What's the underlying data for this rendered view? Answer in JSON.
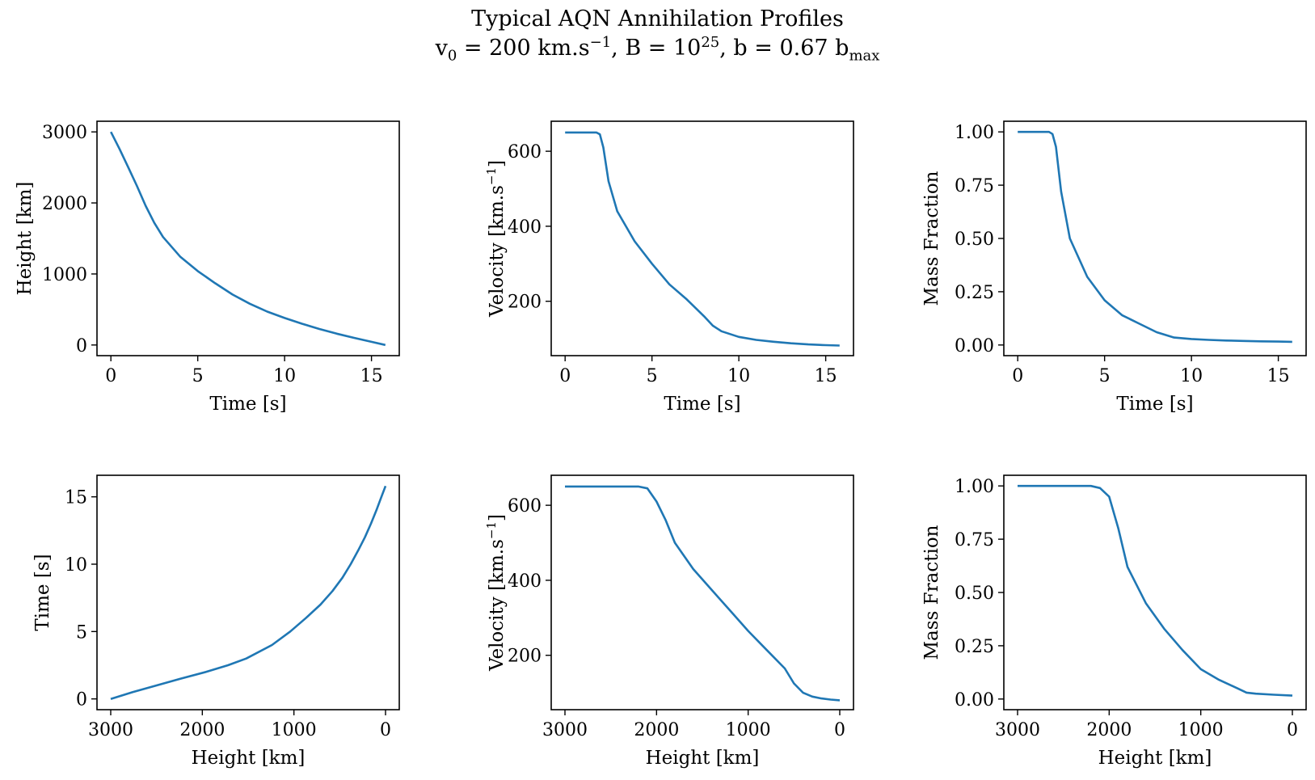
{
  "figure": {
    "title_line1": "Typical AQN Annihilation Profiles",
    "title_line2_parts": {
      "v0_label": "v",
      "v0_sub": "0",
      "v0_value": " = 200 km.s",
      "v0_exp": "−1",
      "B_label": ",  B = 10",
      "B_exp": "25",
      "b_label": ",  b = 0.67 b",
      "b_sub": "max"
    },
    "line_color": "#1f77b4"
  },
  "chart_data": [
    {
      "type": "line",
      "id": "time-height",
      "xlabel": "Time [s]",
      "ylabel": "Height [km]",
      "xlim": [
        -0.8,
        16.6
      ],
      "ylim": [
        -150,
        3150
      ],
      "xticks": [
        0,
        5,
        10,
        15
      ],
      "xtick_labels": [
        "0",
        "5",
        "10",
        "15"
      ],
      "yticks": [
        0,
        1000,
        2000,
        3000
      ],
      "ytick_labels": [
        "0",
        "1000",
        "2000",
        "3000"
      ],
      "x": [
        0,
        0.5,
        1,
        1.5,
        2,
        2.5,
        3,
        4,
        5,
        6,
        7,
        8,
        9,
        10,
        11,
        12,
        13,
        14,
        15,
        15.8
      ],
      "y": [
        3000,
        2760,
        2500,
        2240,
        1960,
        1720,
        1520,
        1240,
        1040,
        870,
        710,
        580,
        470,
        380,
        300,
        225,
        160,
        100,
        45,
        0
      ]
    },
    {
      "type": "line",
      "id": "time-velocity",
      "xlabel": "Time [s]",
      "ylabel": "Velocity [km.s",
      "ylabel_exp": "−1",
      "ylabel_end": "]",
      "xlim": [
        -0.8,
        16.6
      ],
      "ylim": [
        55,
        680
      ],
      "xticks": [
        0,
        5,
        10,
        15
      ],
      "xtick_labels": [
        "0",
        "5",
        "10",
        "15"
      ],
      "yticks": [
        200,
        400,
        600
      ],
      "ytick_labels": [
        "200",
        "400",
        "600"
      ],
      "x": [
        0,
        1.8,
        2.0,
        2.2,
        2.5,
        3,
        4,
        5,
        6,
        7,
        8,
        8.5,
        9,
        10,
        11,
        12,
        13,
        14,
        15,
        15.8
      ],
      "y": [
        650,
        650,
        645,
        610,
        520,
        440,
        360,
        300,
        245,
        205,
        160,
        135,
        120,
        105,
        97,
        92,
        88,
        85,
        83,
        82
      ]
    },
    {
      "type": "line",
      "id": "time-mass",
      "xlabel": "Time [s]",
      "ylabel": "Mass Fraction",
      "xlim": [
        -0.8,
        16.6
      ],
      "ylim": [
        -0.05,
        1.05
      ],
      "xticks": [
        0,
        5,
        10,
        15
      ],
      "xtick_labels": [
        "0",
        "5",
        "10",
        "15"
      ],
      "yticks": [
        0,
        0.25,
        0.5,
        0.75,
        1.0
      ],
      "ytick_labels": [
        "0.00",
        "0.25",
        "0.50",
        "0.75",
        "1.00"
      ],
      "x": [
        0,
        1.8,
        2.0,
        2.2,
        2.5,
        3,
        4,
        5,
        6,
        7,
        8,
        9,
        10,
        11,
        12,
        13,
        14,
        15,
        15.8
      ],
      "y": [
        1.0,
        1.0,
        0.99,
        0.93,
        0.72,
        0.5,
        0.32,
        0.21,
        0.14,
        0.1,
        0.06,
        0.035,
        0.028,
        0.024,
        0.021,
        0.019,
        0.017,
        0.016,
        0.015
      ]
    },
    {
      "type": "line",
      "id": "height-time",
      "xlabel": "Height [km]",
      "ylabel": "Time [s]",
      "xlim": [
        3150,
        -150
      ],
      "ylim": [
        -0.8,
        16.6
      ],
      "xticks": [
        3000,
        2000,
        1000,
        0
      ],
      "xtick_labels": [
        "3000",
        "2000",
        "1000",
        "0"
      ],
      "yticks": [
        0,
        5,
        10,
        15
      ],
      "ytick_labels": [
        "0",
        "5",
        "10",
        "15"
      ],
      "x": [
        3000,
        2760,
        2500,
        2240,
        1960,
        1720,
        1520,
        1240,
        1040,
        870,
        710,
        580,
        470,
        380,
        300,
        225,
        160,
        100,
        45,
        0
      ],
      "y": [
        0,
        0.5,
        1,
        1.5,
        2,
        2.5,
        3,
        4,
        5,
        6,
        7,
        8,
        9,
        10,
        11,
        12,
        13,
        14,
        15,
        15.8
      ]
    },
    {
      "type": "line",
      "id": "height-velocity",
      "xlabel": "Height [km]",
      "ylabel": "Velocity [km.s",
      "ylabel_exp": "−1",
      "ylabel_end": "]",
      "xlim": [
        3150,
        -150
      ],
      "ylim": [
        55,
        680
      ],
      "xticks": [
        3000,
        2000,
        1000,
        0
      ],
      "xtick_labels": [
        "3000",
        "2000",
        "1000",
        "0"
      ],
      "yticks": [
        200,
        400,
        600
      ],
      "ytick_labels": [
        "200",
        "400",
        "600"
      ],
      "x": [
        3000,
        2200,
        2100,
        2000,
        1900,
        1800,
        1600,
        1400,
        1200,
        1000,
        800,
        600,
        500,
        400,
        300,
        200,
        100,
        0
      ],
      "y": [
        650,
        650,
        645,
        610,
        560,
        500,
        430,
        375,
        320,
        265,
        215,
        165,
        125,
        100,
        90,
        85,
        82,
        80
      ]
    },
    {
      "type": "line",
      "id": "height-mass",
      "xlabel": "Height [km]",
      "ylabel": "Mass Fraction",
      "xlim": [
        3150,
        -150
      ],
      "ylim": [
        -0.05,
        1.05
      ],
      "xticks": [
        3000,
        2000,
        1000,
        0
      ],
      "xtick_labels": [
        "3000",
        "2000",
        "1000",
        "0"
      ],
      "yticks": [
        0,
        0.25,
        0.5,
        0.75,
        1.0
      ],
      "ytick_labels": [
        "0.00",
        "0.25",
        "0.50",
        "0.75",
        "1.00"
      ],
      "x": [
        3000,
        2200,
        2100,
        2000,
        1900,
        1800,
        1600,
        1400,
        1200,
        1000,
        800,
        600,
        500,
        400,
        200,
        0
      ],
      "y": [
        1.0,
        1.0,
        0.99,
        0.95,
        0.8,
        0.62,
        0.45,
        0.33,
        0.23,
        0.14,
        0.09,
        0.05,
        0.03,
        0.025,
        0.02,
        0.016
      ]
    }
  ]
}
